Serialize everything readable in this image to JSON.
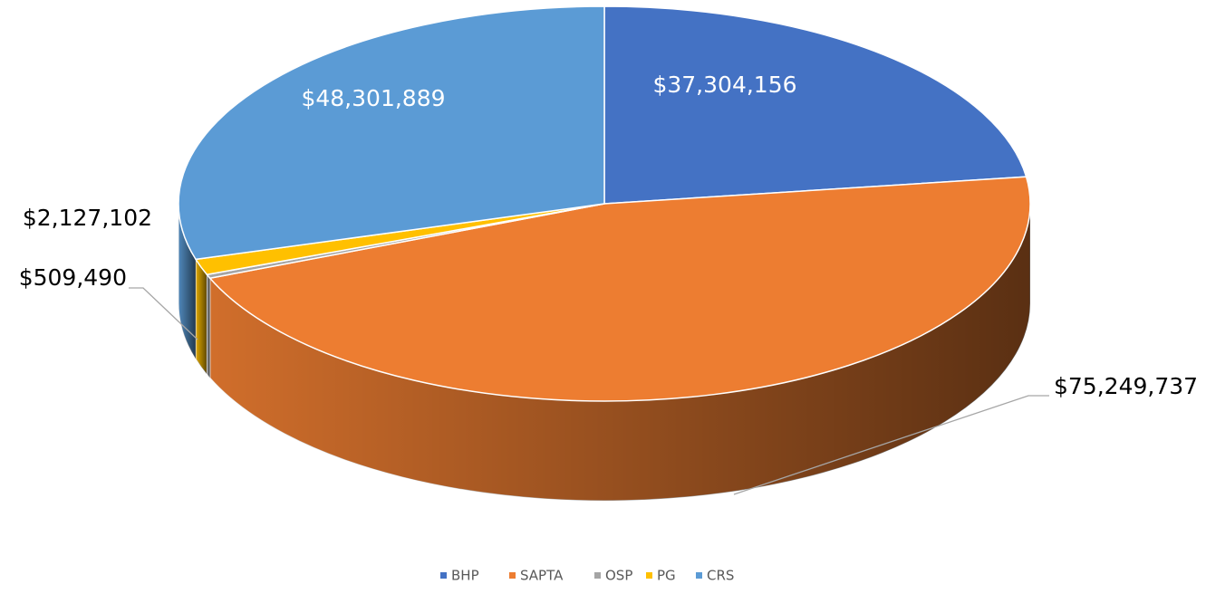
{
  "chart_data": {
    "type": "pie3d",
    "categories": [
      "BHP",
      "SAPTA",
      "OSP",
      "PG",
      "CRS"
    ],
    "values": [
      37304156,
      75249737,
      509490,
      2127102,
      48301889
    ],
    "value_labels": [
      "$37,304,156",
      "$75,249,737",
      "$509,490",
      "$2,127,102",
      "$48,301,889"
    ],
    "colors": [
      "#4472c4",
      "#ed7d31",
      "#a5a5a5",
      "#ffc000",
      "#5b9bd5"
    ],
    "legend": "bottom"
  }
}
